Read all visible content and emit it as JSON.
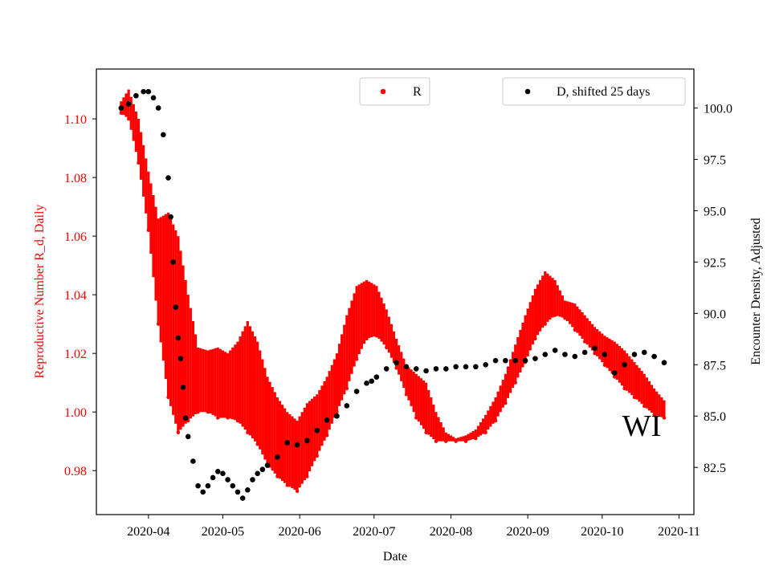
{
  "chart_data": {
    "type": "scatter",
    "title": "",
    "xlabel": "Date",
    "ylabel_left": "Reproductive Number R_d, Daily",
    "ylabel_right": "Encounter Density, Adjusted",
    "x_ticks": [
      "2020-04",
      "2020-05",
      "2020-06",
      "2020-07",
      "2020-08",
      "2020-09",
      "2020-10",
      "2020-11"
    ],
    "x_tick_days": [
      0,
      30,
      61,
      91,
      122,
      153,
      183,
      214
    ],
    "xlim_days": [
      -21,
      220
    ],
    "ylim_left": [
      0.965,
      1.117
    ],
    "yticks_left": [
      0.98,
      1.0,
      1.02,
      1.04,
      1.06,
      1.08,
      1.1
    ],
    "ylim_right": [
      80.2,
      101.9
    ],
    "yticks_right": [
      82.5,
      85.0,
      87.5,
      90.0,
      92.5,
      95.0,
      97.5,
      100.0
    ],
    "annotation": "WI",
    "colors": {
      "R": "#ff0000",
      "D": "#000000",
      "left_axis": "#ff0000",
      "right_axis": "#000000"
    },
    "series": [
      {
        "name": "R",
        "axis": "left",
        "legend": "top-center",
        "description": "daily R with min/max band; day offsets from 2020-04-01",
        "x": [
          -11,
          -8,
          -4,
          0,
          4,
          8,
          12,
          16,
          20,
          24,
          28,
          32,
          36,
          40,
          44,
          48,
          52,
          56,
          60,
          64,
          68,
          72,
          76,
          80,
          84,
          88,
          92,
          96,
          100,
          104,
          108,
          112,
          116,
          120,
          124,
          128,
          132,
          136,
          140,
          144,
          148,
          152,
          156,
          160,
          164,
          168,
          172,
          176,
          180,
          184,
          188,
          192,
          196,
          200,
          204,
          208
        ],
        "lower": [
          1.102,
          1.1,
          1.085,
          1.062,
          1.03,
          1.005,
          0.993,
          0.997,
          1.0,
          1.0,
          0.998,
          0.998,
          0.997,
          0.993,
          0.989,
          0.982,
          0.978,
          0.975,
          0.973,
          0.978,
          0.985,
          0.992,
          1.0,
          1.008,
          1.018,
          1.025,
          1.026,
          1.022,
          1.015,
          1.006,
          0.998,
          0.993,
          0.99,
          0.99,
          0.99,
          0.99,
          0.991,
          0.993,
          0.997,
          1.003,
          1.01,
          1.017,
          1.025,
          1.03,
          1.033,
          1.032,
          1.028,
          1.024,
          1.02,
          1.016,
          1.012,
          1.008,
          1.005,
          1.002,
          0.999,
          0.998
        ],
        "upper": [
          1.106,
          1.11,
          1.1,
          1.082,
          1.066,
          1.068,
          1.06,
          1.04,
          1.022,
          1.021,
          1.022,
          1.02,
          1.024,
          1.031,
          1.024,
          1.012,
          1.005,
          1.0,
          0.997,
          1.003,
          1.006,
          1.012,
          1.02,
          1.033,
          1.043,
          1.045,
          1.043,
          1.035,
          1.025,
          1.016,
          1.013,
          1.01,
          1.0,
          0.993,
          0.991,
          0.992,
          0.994,
          0.999,
          1.005,
          1.013,
          1.023,
          1.033,
          1.042,
          1.048,
          1.045,
          1.038,
          1.037,
          1.033,
          1.029,
          1.026,
          1.024,
          1.021,
          1.017,
          1.013,
          1.008,
          1.004
        ]
      },
      {
        "name": "D, shifted 25 days",
        "axis": "right",
        "legend": "top-right",
        "x": [
          -11,
          -8,
          -5,
          -2,
          0,
          2,
          4,
          6,
          8,
          9,
          10,
          11,
          12,
          13,
          14,
          15,
          16,
          18,
          20,
          22,
          24,
          26,
          28,
          30,
          32,
          34,
          36,
          38,
          40,
          42,
          44,
          46,
          48,
          52,
          56,
          60,
          64,
          68,
          72,
          76,
          80,
          84,
          88,
          90,
          92,
          96,
          100,
          104,
          108,
          112,
          116,
          120,
          124,
          128,
          132,
          136,
          140,
          144,
          148,
          152,
          156,
          160,
          164,
          168,
          172,
          176,
          180,
          184,
          188,
          192,
          196,
          200,
          204,
          208
        ],
        "values": [
          100.0,
          100.2,
          100.6,
          100.8,
          100.8,
          100.5,
          100.0,
          98.7,
          96.6,
          94.7,
          92.5,
          90.3,
          88.8,
          87.8,
          86.4,
          84.9,
          84.0,
          82.8,
          81.6,
          81.3,
          81.6,
          82.0,
          82.3,
          82.2,
          81.9,
          81.6,
          81.3,
          81.0,
          81.4,
          81.9,
          82.2,
          82.4,
          82.6,
          83.0,
          83.7,
          83.6,
          83.8,
          84.3,
          84.8,
          85.0,
          85.5,
          86.2,
          86.6,
          86.7,
          86.9,
          87.3,
          87.6,
          87.4,
          87.3,
          87.2,
          87.3,
          87.3,
          87.4,
          87.4,
          87.4,
          87.5,
          87.7,
          87.7,
          87.7,
          87.7,
          87.8,
          88.0,
          88.2,
          88.0,
          87.9,
          88.1,
          88.3,
          88.0,
          87.1,
          87.5,
          88.0,
          88.1,
          87.9,
          87.6
        ]
      }
    ]
  }
}
